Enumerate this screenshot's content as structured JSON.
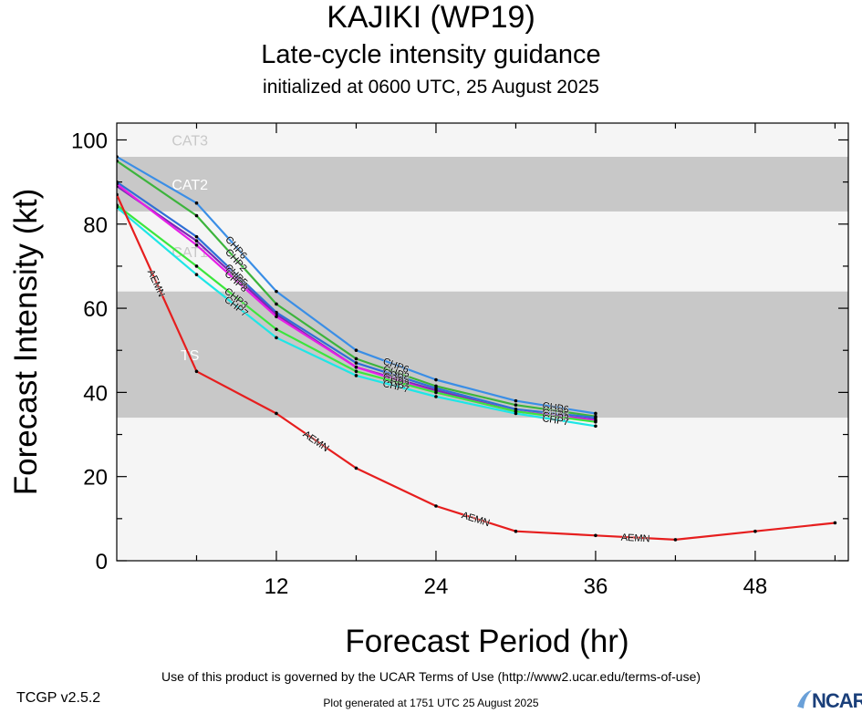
{
  "header": {
    "title": "KAJIKI (WP19)",
    "subtitle": "Late-cycle intensity guidance",
    "init": "initialized at 0600 UTC, 25 August 2025"
  },
  "footer": {
    "terms": "Use of this product is governed by the UCAR Terms of Use (http://www2.ucar.edu/terms-of-use)",
    "generated": "Plot generated at 1751 UTC   25 August 2025",
    "version": "TCGP v2.5.2",
    "logo": "NCAR"
  },
  "chart_data": {
    "type": "line",
    "xlabel": "Forecast Period (hr)",
    "ylabel": "Forecast Intensity (kt)",
    "xlim": [
      0,
      55
    ],
    "ylim": [
      0,
      104
    ],
    "xticks": [
      12,
      24,
      36,
      48
    ],
    "yticks": [
      0,
      20,
      40,
      60,
      80,
      100
    ],
    "bands": [
      {
        "label": "TS",
        "from": 34,
        "to": 64,
        "color": "#c8c8c8"
      },
      {
        "label": "CAT1",
        "from": 64,
        "to": 83,
        "color": "#f5f5f5"
      },
      {
        "label": "CAT2",
        "from": 83,
        "to": 96,
        "color": "#c8c8c8"
      },
      {
        "label": "CAT3",
        "from": 96,
        "to": 104,
        "color": "#f5f5f5"
      }
    ],
    "series": [
      {
        "name": "CHP6",
        "color": "#3a8ee6",
        "x": [
          0,
          6,
          12,
          18,
          24,
          30,
          36
        ],
        "y": [
          96,
          85,
          64,
          50,
          43,
          38,
          35
        ]
      },
      {
        "name": "CHP2",
        "color": "#3cb43c",
        "x": [
          0,
          6,
          12,
          18,
          24,
          30,
          36
        ],
        "y": [
          95,
          82,
          61,
          48,
          41.5,
          37,
          34.3
        ]
      },
      {
        "name": "CHP5",
        "color": "#2f6fd6",
        "x": [
          0,
          6,
          12,
          18,
          24,
          30,
          36
        ],
        "y": [
          90,
          77,
          59,
          47,
          41,
          36,
          34
        ]
      },
      {
        "name": "CHP4",
        "color": "#7b2ab5",
        "x": [
          0,
          6,
          12,
          18,
          24,
          30,
          36
        ],
        "y": [
          89,
          76,
          58.5,
          46,
          40.5,
          35.5,
          33.5
        ]
      },
      {
        "name": "CHP8",
        "color": "#e61ee6",
        "x": [
          0,
          6,
          12,
          18,
          24,
          30,
          36
        ],
        "y": [
          89.5,
          75,
          58,
          46,
          40,
          35.5,
          33.3
        ]
      },
      {
        "name": "CHP3",
        "color": "#3ce63c",
        "x": [
          0,
          6,
          12,
          18,
          24,
          30,
          36
        ],
        "y": [
          84.5,
          70,
          55,
          45,
          40,
          35.5,
          33
        ]
      },
      {
        "name": "CHP7",
        "color": "#1ee6e6",
        "x": [
          0,
          6,
          12,
          18,
          24,
          30,
          36
        ],
        "y": [
          84,
          68,
          53,
          44,
          39,
          35,
          32
        ]
      },
      {
        "name": "AEMN",
        "color": "#e61e1e",
        "x": [
          0,
          6,
          12,
          18,
          24,
          30,
          36,
          42,
          48,
          54
        ],
        "y": [
          87,
          45,
          35,
          22,
          13,
          7,
          6,
          5,
          7,
          9
        ]
      }
    ]
  }
}
